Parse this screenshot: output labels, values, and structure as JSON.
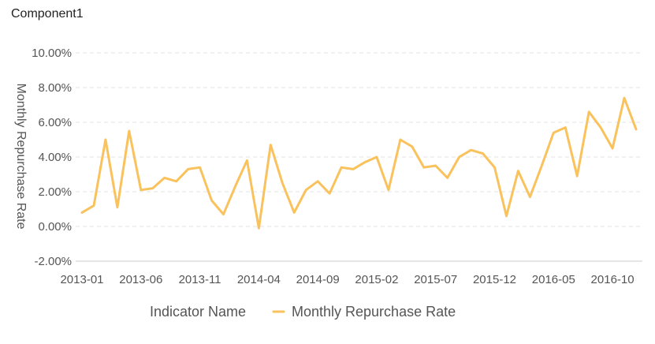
{
  "component": {
    "title": "Component1"
  },
  "chart_data": {
    "type": "line",
    "title": "",
    "xlabel": "",
    "ylabel": "Monthly Repurchase Rate",
    "ylim": [
      -0.02,
      0.1
    ],
    "yticks": [
      -0.02,
      0,
      0.02,
      0.04,
      0.06,
      0.08,
      0.1
    ],
    "ytick_labels": [
      "-2.00%",
      "0.00%",
      "2.00%",
      "4.00%",
      "6.00%",
      "8.00%",
      "10.00%"
    ],
    "y_grid": true,
    "x": [
      "2013-01",
      "2013-02",
      "2013-03",
      "2013-04",
      "2013-05",
      "2013-06",
      "2013-07",
      "2013-08",
      "2013-09",
      "2013-10",
      "2013-11",
      "2013-12",
      "2014-01",
      "2014-02",
      "2014-03",
      "2014-04",
      "2014-05",
      "2014-06",
      "2014-07",
      "2014-08",
      "2014-09",
      "2014-10",
      "2014-11",
      "2014-12",
      "2015-01",
      "2015-02",
      "2015-03",
      "2015-04",
      "2015-05",
      "2015-06",
      "2015-07",
      "2015-08",
      "2015-09",
      "2015-10",
      "2015-11",
      "2015-12",
      "2016-01",
      "2016-02",
      "2016-03",
      "2016-04",
      "2016-05",
      "2016-06",
      "2016-07",
      "2016-08",
      "2016-09",
      "2016-10",
      "2016-11",
      "2016-12"
    ],
    "x_tick_labels": [
      "2013-01",
      "2013-06",
      "2013-11",
      "2014-04",
      "2014-09",
      "2015-02",
      "2015-07",
      "2015-12",
      "2016-05",
      "2016-10"
    ],
    "series": [
      {
        "name": "Monthly Repurchase Rate",
        "color": "#F9C25C",
        "values": [
          0.008,
          0.012,
          0.05,
          0.011,
          0.055,
          0.021,
          0.022,
          0.028,
          0.026,
          0.033,
          0.034,
          0.015,
          0.007,
          0.023,
          0.038,
          -0.001,
          0.047,
          0.025,
          0.008,
          0.021,
          0.026,
          0.019,
          0.034,
          0.033,
          0.037,
          0.04,
          0.021,
          0.05,
          0.046,
          0.034,
          0.035,
          0.028,
          0.04,
          0.044,
          0.042,
          0.034,
          0.006,
          0.032,
          0.017,
          0.035,
          0.054,
          0.057,
          0.029,
          0.066,
          0.057,
          0.045,
          0.074,
          0.056
        ]
      }
    ],
    "legend": {
      "title": "Indicator Name",
      "position": "bottom-center"
    }
  }
}
